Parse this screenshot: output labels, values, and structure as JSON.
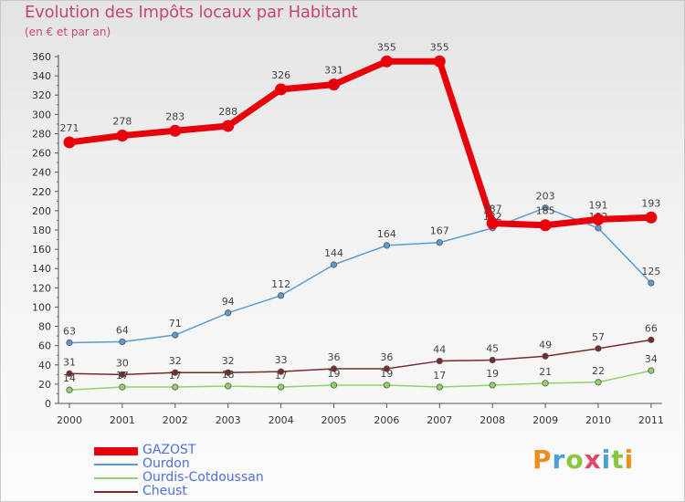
{
  "header": {
    "title": "Evolution des Impôts locaux par Habitant",
    "subtitle": "(en € et par an)"
  },
  "logo": {
    "text": "Proxiti",
    "colors": [
      "#f08c1e",
      "#4aa0d8",
      "#8cc63e",
      "#e04a6a",
      "#4aa0d8",
      "#8cc63e",
      "#f08c1e"
    ]
  },
  "chart_data": {
    "type": "line",
    "title": "Evolution des Impôts locaux par Habitant",
    "subtitle": "(en € et par an)",
    "xlabel": "",
    "ylabel": "",
    "ylim": [
      0,
      360
    ],
    "yticks": [
      0,
      20,
      40,
      60,
      80,
      100,
      120,
      140,
      160,
      180,
      200,
      220,
      240,
      260,
      280,
      300,
      320,
      340,
      360
    ],
    "grid": false,
    "legend_position": "bottom-left",
    "categories": [
      "2000",
      "2001",
      "2002",
      "2003",
      "2004",
      "2005",
      "2006",
      "2007",
      "2008",
      "2009",
      "2010",
      "2011"
    ],
    "series": [
      {
        "name": "Cheust",
        "color": "#7a2a2a",
        "width": 1.5,
        "values": [
          31,
          30,
          32,
          32,
          33,
          36,
          36,
          44,
          45,
          49,
          57,
          66
        ]
      },
      {
        "name": "Ourdis-Cotdoussan",
        "color": "#8fd36a",
        "width": 1.5,
        "values": [
          14,
          17,
          17,
          18,
          17,
          19,
          19,
          17,
          19,
          21,
          22,
          34
        ]
      },
      {
        "name": "Ourdon",
        "color": "#5a9bd4",
        "width": 1.5,
        "values": [
          63,
          64,
          71,
          94,
          112,
          144,
          164,
          167,
          182,
          203,
          182,
          125
        ]
      },
      {
        "name": "GAZOST",
        "color": "#e8000b",
        "width": 7,
        "values": [
          271,
          278,
          283,
          288,
          326,
          331,
          355,
          355,
          187,
          185,
          191,
          193
        ]
      }
    ],
    "legend": [
      "GAZOST",
      "Ourdon",
      "Ourdis-Cotdoussan",
      "Cheust"
    ]
  }
}
